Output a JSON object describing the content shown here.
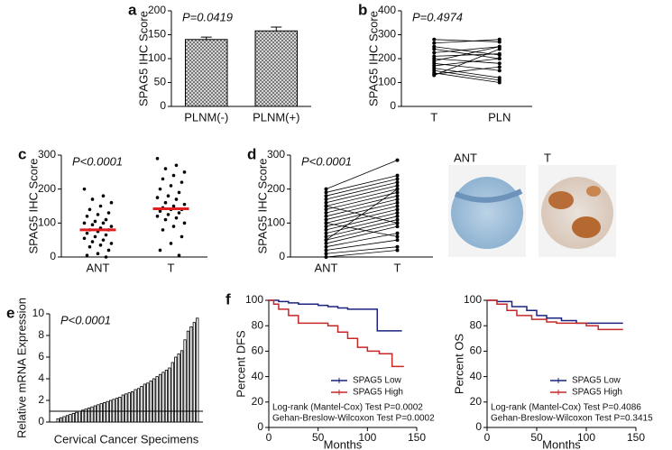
{
  "chart_data": [
    {
      "type": "bar",
      "panel": "a",
      "ylabel": "SPAG5 IHC Score",
      "annotation": "P=0.0419",
      "categories": [
        "PLNM(-)",
        "PLNM(+)"
      ],
      "values": [
        140,
        158
      ],
      "errors": [
        5,
        8
      ],
      "color": "#a8a8a8",
      "ylim": [
        0,
        200
      ],
      "yticks": [
        0,
        50,
        100,
        150,
        200
      ]
    },
    {
      "type": "paired",
      "panel": "b",
      "ylabel": "SPAG5 IHC Score",
      "annotation": "P=0.4974",
      "categories": [
        "T",
        "PLN"
      ],
      "pairs": [
        [
          280,
          270
        ],
        [
          265,
          280
        ],
        [
          250,
          215
        ],
        [
          240,
          200
        ],
        [
          225,
          250
        ],
        [
          210,
          220
        ],
        [
          200,
          180
        ],
        [
          190,
          250
        ],
        [
          180,
          150
        ],
        [
          170,
          200
        ],
        [
          160,
          120
        ],
        [
          150,
          110
        ],
        [
          140,
          100
        ],
        [
          135,
          165
        ],
        [
          130,
          240
        ]
      ],
      "ylim": [
        0,
        400
      ],
      "yticks": [
        0,
        100,
        200,
        300,
        400
      ]
    },
    {
      "type": "dot",
      "panel": "c",
      "ylabel": "SPAG5 IHC Score",
      "annotation": "P<0.0001",
      "categories": [
        "ANT",
        "T"
      ],
      "groups": [
        [
          200,
          180,
          170,
          160,
          150,
          140,
          130,
          125,
          120,
          110,
          105,
          100,
          100,
          95,
          90,
          85,
          80,
          80,
          75,
          70,
          65,
          60,
          55,
          50,
          45,
          40,
          35,
          30,
          20,
          10,
          5,
          0
        ],
        [
          290,
          270,
          260,
          250,
          240,
          230,
          220,
          210,
          200,
          190,
          180,
          175,
          170,
          160,
          155,
          150,
          145,
          140,
          140,
          135,
          130,
          125,
          120,
          115,
          110,
          100,
          90,
          80,
          60,
          40,
          20,
          5
        ]
      ],
      "means": [
        80,
        142
      ],
      "mean_color": "#e02020",
      "ylim": [
        0,
        300
      ],
      "yticks": [
        0,
        100,
        200,
        300
      ]
    },
    {
      "type": "paired",
      "panel": "d",
      "ylabel": "SPAG5 IHC Score",
      "annotation": "P<0.0001",
      "categories": [
        "ANT",
        "T"
      ],
      "pairs": [
        [
          200,
          285
        ],
        [
          190,
          240
        ],
        [
          180,
          230
        ],
        [
          170,
          220
        ],
        [
          160,
          210
        ],
        [
          150,
          200
        ],
        [
          140,
          190
        ],
        [
          130,
          180
        ],
        [
          120,
          170
        ],
        [
          110,
          160
        ],
        [
          100,
          150
        ],
        [
          90,
          140
        ],
        [
          80,
          130
        ],
        [
          70,
          120
        ],
        [
          60,
          110
        ],
        [
          50,
          100
        ],
        [
          40,
          90
        ],
        [
          30,
          70
        ],
        [
          20,
          50
        ],
        [
          10,
          30
        ],
        [
          0,
          20
        ],
        [
          100,
          60
        ],
        [
          150,
          100
        ],
        [
          50,
          200
        ]
      ],
      "ylim": [
        0,
        300
      ],
      "yticks": [
        0,
        100,
        200,
        300
      ]
    },
    {
      "type": "bars",
      "panel": "e",
      "ylabel": "Relative mRNA Expression",
      "xlabel": "Cervical Cancer Specimens",
      "annotation": "P<0.0001",
      "values": [
        0.3,
        0.4,
        0.5,
        0.6,
        0.7,
        0.8,
        0.9,
        1.0,
        1.1,
        1.2,
        1.3,
        1.4,
        1.5,
        1.6,
        1.7,
        1.8,
        1.9,
        2.0,
        2.1,
        2.2,
        2.3,
        2.5,
        2.6,
        2.7,
        2.8,
        3.0,
        3.1,
        3.3,
        3.5,
        3.6,
        3.8,
        4.0,
        4.2,
        4.4,
        4.6,
        4.8,
        5.0,
        5.5,
        6.0,
        6.3,
        6.6,
        7.6,
        8.4,
        8.8,
        9.2,
        9.6
      ],
      "reference": 1,
      "color": "#ffffff",
      "ylim": [
        0,
        10
      ],
      "yticks": [
        0,
        2,
        4,
        6,
        8,
        10
      ]
    },
    {
      "type": "survival",
      "panel": "f",
      "ylabel": "Percent DFS",
      "xlabel": "Months",
      "legend": "lower right",
      "xlim": [
        0,
        150
      ],
      "xticks": [
        0,
        50,
        100,
        150
      ],
      "ylim": [
        0,
        100
      ],
      "yticks": [
        0,
        20,
        40,
        60,
        80,
        100
      ],
      "series": [
        {
          "name": "SPAG5 Low",
          "color": "#1a237e",
          "x": [
            0,
            10,
            20,
            30,
            40,
            50,
            60,
            70,
            80,
            90,
            100,
            110,
            120,
            135
          ],
          "values": [
            100,
            99,
            98,
            97,
            97,
            96,
            95,
            94,
            93,
            93,
            93,
            76,
            76,
            76
          ]
        },
        {
          "name": "SPAG5 High",
          "color": "#c62828",
          "x": [
            0,
            5,
            10,
            20,
            30,
            40,
            60,
            70,
            80,
            90,
            100,
            112,
            125,
            137
          ],
          "values": [
            100,
            97,
            93,
            88,
            82,
            82,
            80,
            75,
            70,
            63,
            60,
            58,
            48,
            48
          ]
        }
      ],
      "notes": [
        "Log-rank (Mantel-Cox) Test P=0.0002",
        "Gehan-Breslow-Wilcoxon Test P=0.0002"
      ]
    },
    {
      "type": "survival",
      "ylabel": "Percent OS",
      "xlabel": "Months",
      "legend": "lower right",
      "xlim": [
        0,
        150
      ],
      "xticks": [
        0,
        50,
        100,
        150
      ],
      "ylim": [
        0,
        100
      ],
      "yticks": [
        0,
        20,
        40,
        60,
        80,
        100
      ],
      "series": [
        {
          "name": "SPAG5 Low",
          "color": "#1a237e",
          "x": [
            0,
            10,
            25,
            40,
            50,
            60,
            75,
            90,
            110,
            137
          ],
          "values": [
            100,
            99,
            95,
            92,
            88,
            86,
            84,
            82,
            82,
            82
          ]
        },
        {
          "name": "SPAG5 High",
          "color": "#c62828",
          "x": [
            0,
            10,
            20,
            30,
            45,
            60,
            70,
            100,
            112,
            137
          ],
          "values": [
            100,
            97,
            92,
            88,
            85,
            83,
            82,
            80,
            77,
            77
          ]
        }
      ],
      "notes": [
        "Log-rank (Mantel-Cox) Test P=0.4086",
        "Gehan-Breslow-Wilcoxon Test P=0.3415"
      ]
    }
  ],
  "images": [
    {
      "label": "ANT"
    },
    {
      "label": "T"
    }
  ]
}
